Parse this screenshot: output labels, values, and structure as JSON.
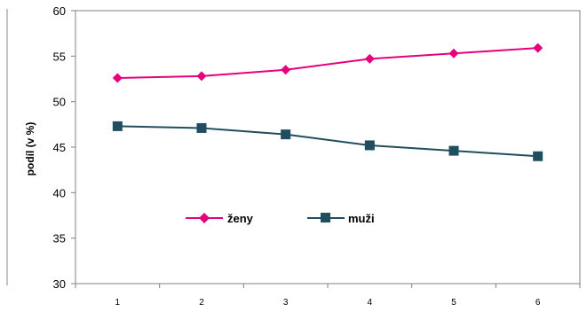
{
  "chart_data": {
    "type": "line",
    "title": "",
    "xlabel": "",
    "ylabel": "podíl (v %)",
    "x": [
      "1",
      "2",
      "3",
      "4",
      "5",
      "6"
    ],
    "ylim": [
      30,
      60
    ],
    "yticks": [
      "30",
      "35",
      "40",
      "45",
      "50",
      "55",
      "60"
    ],
    "grid": false,
    "legend_position": "lower-center (inside plot)",
    "series": [
      {
        "name": "ženy",
        "values": [
          52.6,
          52.8,
          53.5,
          54.7,
          55.3,
          55.9
        ],
        "color": "#E6007E",
        "marker": "diamond"
      },
      {
        "name": "muži",
        "values": [
          47.3,
          47.1,
          46.4,
          45.2,
          44.6,
          44.0
        ],
        "color": "#1F4E5F",
        "marker": "square"
      }
    ]
  }
}
